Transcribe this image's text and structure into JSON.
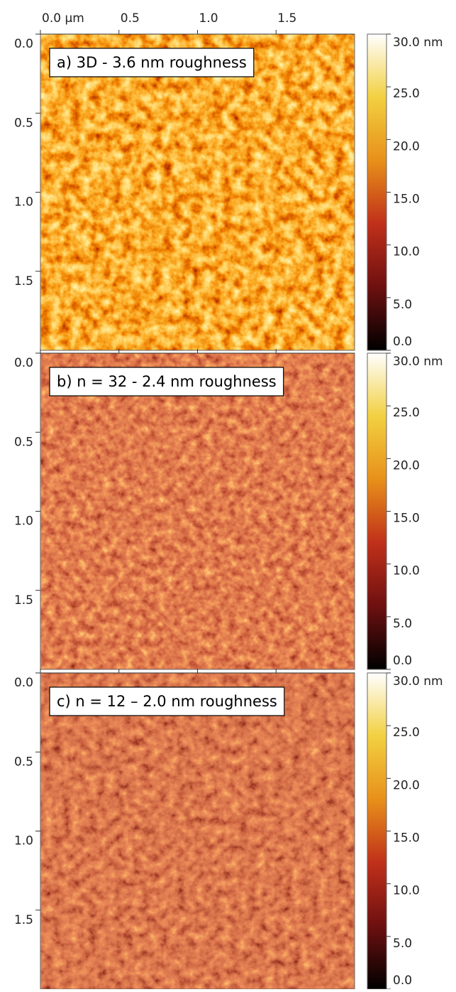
{
  "chart_data": [
    {
      "type": "heatmap",
      "annotation": "a) 3D - 3.6 nm roughness",
      "xlim": [
        0,
        2
      ],
      "xticks": [
        {
          "value": 0,
          "label": "0.0 μm"
        },
        0.5,
        {
          "value": 1,
          "label": "1.0"
        },
        1.5
      ],
      "ylim": [
        0,
        2
      ],
      "yticks": [
        {
          "value": 0,
          "label": "0.0"
        },
        0.5,
        {
          "value": 1,
          "label": "1.0"
        },
        1.5
      ],
      "clim": [
        0,
        30
      ],
      "cticks": [
        {
          "value": 30,
          "label": "30.0 nm"
        },
        {
          "value": 25,
          "label": "25.0"
        },
        {
          "value": 20,
          "label": "20.0"
        },
        {
          "value": 15,
          "label": "15.0"
        },
        {
          "value": 10,
          "label": "10.0"
        },
        {
          "value": 5,
          "label": "5.0"
        },
        {
          "value": 0,
          "label": "0.0"
        }
      ],
      "colormap": [
        "#000000",
        "#6e1010",
        "#c0301a",
        "#e8901a",
        "#f2d040",
        "#ffffff"
      ]
    },
    {
      "type": "heatmap",
      "annotation": "b) n = 32 - 2.4 nm roughness",
      "ylim": [
        0,
        2
      ],
      "yticks": [
        {
          "value": 0,
          "label": "0.0"
        },
        0.5,
        {
          "value": 1,
          "label": "1.0"
        },
        1.5
      ],
      "clim": [
        0,
        30
      ],
      "cticks": [
        {
          "value": 30,
          "label": "30.0 nm"
        },
        {
          "value": 25,
          "label": "25.0"
        },
        {
          "value": 20,
          "label": "20.0"
        },
        {
          "value": 15,
          "label": "15.0"
        },
        {
          "value": 10,
          "label": "10.0"
        },
        {
          "value": 5,
          "label": "5.0"
        },
        {
          "value": 0,
          "label": "0.0"
        }
      ],
      "colormap": [
        "#000000",
        "#6e1010",
        "#c0301a",
        "#e8901a",
        "#f2d040",
        "#ffffff"
      ]
    },
    {
      "type": "heatmap",
      "annotation": "c) n = 12 – 2.0 nm roughness",
      "ylim": [
        0,
        2
      ],
      "yticks": [
        {
          "value": 0,
          "label": "0.0"
        },
        0.5,
        {
          "value": 1,
          "label": "1.0"
        },
        1.5
      ],
      "clim": [
        0,
        30
      ],
      "cticks": [
        {
          "value": 30,
          "label": "30.0 nm"
        },
        {
          "value": 25,
          "label": "25.0"
        },
        {
          "value": 20,
          "label": "20.0"
        },
        {
          "value": 15,
          "label": "15.0"
        },
        {
          "value": 10,
          "label": "10.0"
        },
        {
          "value": 5,
          "label": "5.0"
        },
        {
          "value": 0,
          "label": "0.0"
        }
      ],
      "colormap": [
        "#000000",
        "#6e1010",
        "#c0301a",
        "#e8901a",
        "#f2d040",
        "#ffffff"
      ]
    }
  ]
}
